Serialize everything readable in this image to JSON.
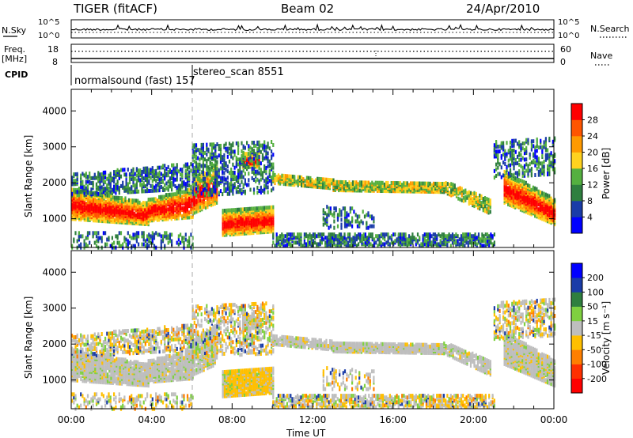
{
  "header": {
    "radar": "TIGER (fitACF)",
    "beam": "Beam 02",
    "date": "24/Apr/2010"
  },
  "summary_panels": {
    "nsky_label": "N.Sky",
    "nsky_ticks": [
      "10^5",
      "10^0"
    ],
    "nsearch_label": "N.Search",
    "freq_label_top": "Freq.",
    "freq_label_unit": "[MHz]",
    "freq_ticks": [
      "18",
      "8"
    ],
    "nave_label": "Nave",
    "nave_ticks": [
      "60",
      "0"
    ],
    "cpid_label": "CPID",
    "cpid_segments": [
      {
        "name": "normalsound (fast) 157",
        "start_hour": 0,
        "end_hour": 6
      },
      {
        "name": "stereo_scan 8551",
        "start_hour": 6,
        "end_hour": 24
      }
    ]
  },
  "chart_data": [
    {
      "type": "heatmap",
      "panel": "power",
      "ylabel": "Slant Range [km]",
      "xlabel": "",
      "ylim": [
        200,
        4600
      ],
      "xlim_hours": [
        0,
        24
      ],
      "yticks": [
        1000,
        2000,
        3000,
        4000
      ],
      "colorbar": {
        "label": "Power [dB]",
        "ticks": [
          4,
          8,
          12,
          16,
          20,
          24,
          28
        ],
        "range": [
          0,
          32
        ],
        "colors": [
          "#0000ff",
          "#1a3ca8",
          "#2f7f3f",
          "#55b040",
          "#ffd21f",
          "#ff9a00",
          "#ff5500",
          "#ff0000"
        ]
      }
    },
    {
      "type": "heatmap",
      "panel": "velocity",
      "ylabel": "Slant Range [km]",
      "xlabel": "Time UT",
      "ylim": [
        200,
        4600
      ],
      "xlim_hours": [
        0,
        24
      ],
      "yticks": [
        1000,
        2000,
        3000,
        4000
      ],
      "colorbar": {
        "label": "Velocity [m s⁻¹]",
        "ticks": [
          "200",
          "100",
          "50",
          "15",
          "-15",
          "-50",
          "-100",
          "-200"
        ],
        "colors": [
          "#0000ff",
          "#1a3ca8",
          "#2f7f3f",
          "#7fd040",
          "#bebebe",
          "#ffbf00",
          "#ff7f00",
          "#ff3000",
          "#ff0000"
        ]
      }
    }
  ],
  "x_ticks": [
    "00:00",
    "04:00",
    "08:00",
    "12:00",
    "16:00",
    "20:00",
    "00:00"
  ],
  "colors": {
    "ground_scatter": "#bebebe",
    "axis": "#000000"
  }
}
